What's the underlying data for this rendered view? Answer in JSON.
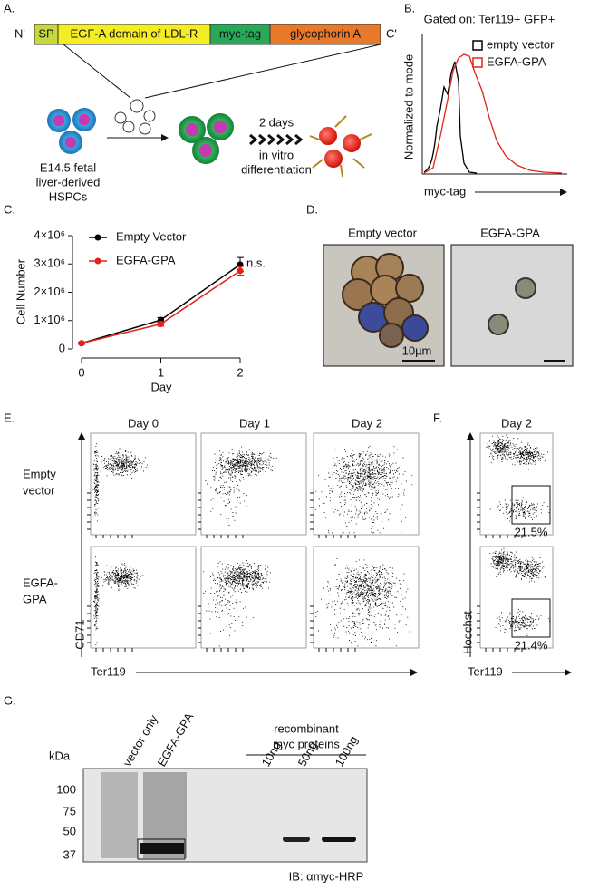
{
  "panel_a": {
    "letter": "A.",
    "n_term": "N'",
    "c_term": "C'",
    "domains": [
      "SP",
      "EGF-A domain of LDL-R",
      "myc-tag",
      "glycophorin A"
    ],
    "cell_label": [
      "E14.5 fetal",
      "liver-derived",
      "HSPCs"
    ],
    "step_label": [
      "2 days",
      "in vitro",
      "differentiation"
    ]
  },
  "panel_b": {
    "letter": "B.",
    "title": "Gated on: Ter119+ GFP+",
    "ylabel": "Normalized to mode",
    "xlabel": "myc-tag",
    "legend": [
      "empty vector",
      "EGFA-GPA"
    ]
  },
  "panel_c": {
    "letter": "C.",
    "annotation": "n.s."
  },
  "chart_data": {
    "type": "line",
    "xlabel": "Day",
    "ylabel": "Cell Number",
    "x": [
      0,
      1,
      2
    ],
    "xlim": [
      0,
      2
    ],
    "xticks": [
      0,
      1,
      2
    ],
    "ylim": [
      0,
      4000000
    ],
    "yticks": [
      0,
      {
        "value": 1000000,
        "label": "1×10⁶"
      },
      {
        "value": 2000000,
        "label": "2×10⁶"
      },
      {
        "value": 3000000,
        "label": "3×10⁶"
      },
      {
        "value": 4000000,
        "label": "4×10⁶"
      }
    ],
    "series": [
      {
        "name": "Empty Vector",
        "color": "#000000",
        "values": [
          200000,
          1020000,
          2980000
        ],
        "errors": [
          30000,
          90000,
          250000
        ]
      },
      {
        "name": "EGFA-GPA",
        "color": "#e0241b",
        "values": [
          200000,
          880000,
          2760000
        ],
        "errors": [
          30000,
          80000,
          150000
        ]
      }
    ]
  },
  "panel_d": {
    "letter": "D.",
    "titles": [
      "Empty vector",
      "EGFA-GPA"
    ],
    "scale": "10µm"
  },
  "panel_e": {
    "letter": "E.",
    "columns": [
      "Day 0",
      "Day 1",
      "Day 2"
    ],
    "rows": [
      [
        "Empty",
        "vector"
      ],
      [
        "EGFA-",
        "GPA"
      ]
    ],
    "ylabel": "CD71",
    "xlabel": "Ter119"
  },
  "panel_f": {
    "letter": "F.",
    "column": "Day 2",
    "gates": [
      "21.5%",
      "21.4%"
    ],
    "ylabel": "Hoechst",
    "xlabel": "Ter119"
  },
  "panel_g": {
    "letter": "G.",
    "unit": "kDa",
    "markers": [
      "100",
      "75",
      "50",
      "37"
    ],
    "lanes": [
      "vector only",
      "EGFA-GPA",
      "10ng",
      "50ng",
      "100ng"
    ],
    "group": [
      "recombinant",
      "myc proteins"
    ],
    "antibody": "IB: αmyc-HRP"
  }
}
